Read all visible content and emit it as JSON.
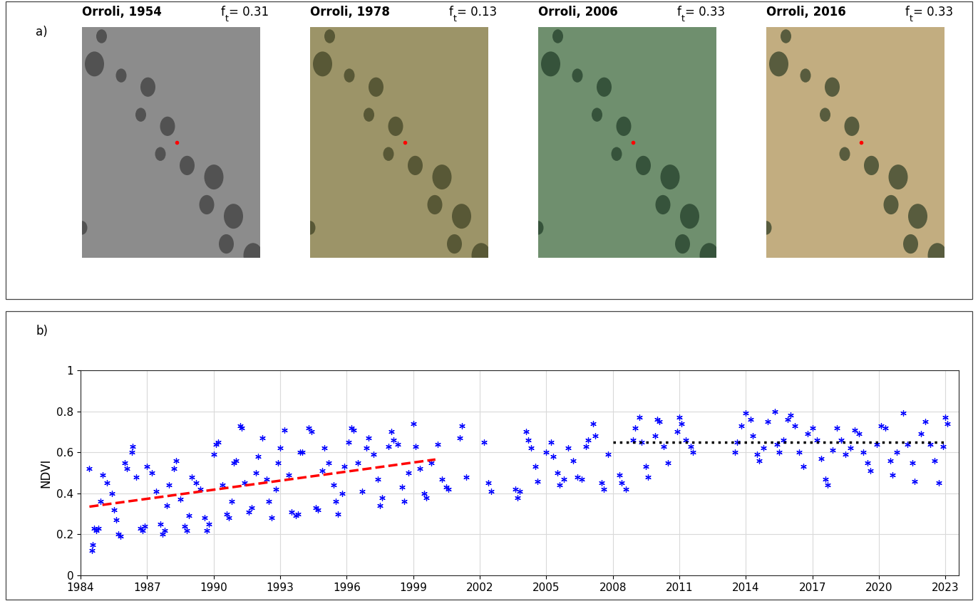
{
  "photos": {
    "panel_label": "a)",
    "fraction_label": {
      "base": "f",
      "subscript": "t",
      "sep": "= "
    },
    "images": [
      {
        "title": "Orroli, 1954",
        "f_t": 0.31
      },
      {
        "title": "Orroli, 1978",
        "f_t": 0.13
      },
      {
        "title": "Orroli, 2006",
        "f_t": 0.33
      },
      {
        "title": "Orroli, 2016",
        "f_t": 0.33
      }
    ]
  },
  "chart_data": {
    "type": "scatter",
    "panel_label": "b)",
    "y_label": "NDVI",
    "xlim": [
      1984,
      2023.6
    ],
    "xticks": [
      1984,
      1987,
      1990,
      1993,
      1996,
      1999,
      2002,
      2005,
      2008,
      2011,
      2014,
      2017,
      2020,
      2023
    ],
    "ylim": [
      0,
      1
    ],
    "yticks": [
      0,
      0.2,
      0.4,
      0.6,
      0.8,
      1
    ],
    "grid": true,
    "series": [
      {
        "type": "scatter",
        "color": "#0000ff",
        "marker": "asterisk",
        "x": [
          1984.4,
          1984.5,
          1984.55,
          1984.6,
          1984.7,
          1984.8,
          1984.9,
          1985.0,
          1985.2,
          1985.4,
          1985.5,
          1985.6,
          1985.7,
          1985.8,
          1986.0,
          1986.1,
          1986.3,
          1986.35,
          1986.5,
          1986.7,
          1986.8,
          1986.9,
          1987.0,
          1987.2,
          1987.4,
          1987.6,
          1987.7,
          1987.8,
          1987.9,
          1988.0,
          1988.2,
          1988.3,
          1988.5,
          1988.7,
          1988.8,
          1988.9,
          1989.0,
          1989.2,
          1989.4,
          1989.6,
          1989.7,
          1989.8,
          1990.0,
          1990.1,
          1990.2,
          1990.4,
          1990.6,
          1990.7,
          1990.8,
          1990.9,
          1991.0,
          1991.2,
          1991.25,
          1991.4,
          1991.6,
          1991.7,
          1991.9,
          1992.0,
          1992.2,
          1992.4,
          1992.5,
          1992.6,
          1992.8,
          1992.9,
          1993.0,
          1993.2,
          1993.4,
          1993.5,
          1993.7,
          1993.8,
          1993.9,
          1994.0,
          1994.3,
          1994.4,
          1994.6,
          1994.7,
          1994.9,
          1995.0,
          1995.2,
          1995.4,
          1995.5,
          1995.6,
          1995.8,
          1995.9,
          1996.1,
          1996.2,
          1996.3,
          1996.5,
          1996.7,
          1996.9,
          1997.0,
          1997.2,
          1997.4,
          1997.5,
          1997.6,
          1997.9,
          1998.0,
          1998.1,
          1998.3,
          1998.5,
          1998.6,
          1998.8,
          1999.0,
          1999.1,
          1999.3,
          1999.5,
          1999.6,
          1999.8,
          2000.1,
          2000.3,
          2000.5,
          2000.6,
          2001.1,
          2001.2,
          2001.4,
          2002.2,
          2002.4,
          2002.5,
          2003.6,
          2003.7,
          2003.8,
          2004.1,
          2004.2,
          2004.3,
          2004.5,
          2004.6,
          2005.0,
          2005.2,
          2005.3,
          2005.5,
          2005.6,
          2005.8,
          2006.0,
          2006.2,
          2006.4,
          2006.6,
          2006.8,
          2006.9,
          2007.1,
          2007.2,
          2007.5,
          2007.6,
          2007.8,
          2008.3,
          2008.4,
          2008.6,
          2008.9,
          2009.0,
          2009.2,
          2009.3,
          2009.5,
          2009.6,
          2009.9,
          2010.0,
          2010.1,
          2010.3,
          2010.5,
          2010.9,
          2011.0,
          2011.1,
          2011.3,
          2011.5,
          2011.6,
          2013.5,
          2013.6,
          2013.8,
          2014.0,
          2014.2,
          2014.3,
          2014.5,
          2014.6,
          2014.8,
          2015.0,
          2015.3,
          2015.4,
          2015.5,
          2015.7,
          2015.9,
          2016.0,
          2016.2,
          2016.4,
          2016.6,
          2016.8,
          2017.0,
          2017.2,
          2017.4,
          2017.6,
          2017.7,
          2017.9,
          2018.1,
          2018.3,
          2018.5,
          2018.7,
          2018.9,
          2019.1,
          2019.3,
          2019.5,
          2019.6,
          2019.9,
          2020.1,
          2020.3,
          2020.5,
          2020.6,
          2020.8,
          2021.1,
          2021.3,
          2021.5,
          2021.6,
          2021.9,
          2022.1,
          2022.3,
          2022.5,
          2022.7,
          2022.9,
          2023.0,
          2023.1
        ],
        "values": [
          0.52,
          0.12,
          0.15,
          0.23,
          0.22,
          0.23,
          0.36,
          0.49,
          0.45,
          0.4,
          0.32,
          0.27,
          0.2,
          0.19,
          0.55,
          0.52,
          0.6,
          0.63,
          0.48,
          0.23,
          0.22,
          0.24,
          0.53,
          0.5,
          0.41,
          0.25,
          0.2,
          0.22,
          0.34,
          0.44,
          0.52,
          0.56,
          0.37,
          0.24,
          0.22,
          0.29,
          0.48,
          0.45,
          0.42,
          0.28,
          0.22,
          0.25,
          0.59,
          0.64,
          0.65,
          0.44,
          0.3,
          0.28,
          0.36,
          0.55,
          0.56,
          0.73,
          0.72,
          0.45,
          0.31,
          0.33,
          0.5,
          0.58,
          0.67,
          0.47,
          0.36,
          0.28,
          0.42,
          0.55,
          0.62,
          0.71,
          0.49,
          0.31,
          0.29,
          0.3,
          0.6,
          0.6,
          0.72,
          0.7,
          0.33,
          0.32,
          0.51,
          0.62,
          0.55,
          0.44,
          0.36,
          0.3,
          0.4,
          0.53,
          0.65,
          0.72,
          0.71,
          0.55,
          0.41,
          0.62,
          0.67,
          0.59,
          0.47,
          0.34,
          0.38,
          0.63,
          0.7,
          0.66,
          0.64,
          0.43,
          0.36,
          0.5,
          0.74,
          0.63,
          0.52,
          0.4,
          0.38,
          0.55,
          0.64,
          0.47,
          0.43,
          0.42,
          0.67,
          0.73,
          0.48,
          0.65,
          0.45,
          0.41,
          0.42,
          0.38,
          0.41,
          0.7,
          0.66,
          0.62,
          0.53,
          0.46,
          0.6,
          0.65,
          0.58,
          0.5,
          0.44,
          0.47,
          0.62,
          0.56,
          0.48,
          0.47,
          0.63,
          0.66,
          0.74,
          0.68,
          0.45,
          0.42,
          0.59,
          0.49,
          0.45,
          0.42,
          0.66,
          0.72,
          0.77,
          0.65,
          0.53,
          0.48,
          0.68,
          0.76,
          0.75,
          0.63,
          0.55,
          0.7,
          0.77,
          0.74,
          0.66,
          0.63,
          0.6,
          0.6,
          0.65,
          0.73,
          0.79,
          0.76,
          0.68,
          0.59,
          0.56,
          0.62,
          0.75,
          0.8,
          0.64,
          0.6,
          0.66,
          0.76,
          0.78,
          0.73,
          0.6,
          0.53,
          0.69,
          0.72,
          0.66,
          0.57,
          0.47,
          0.44,
          0.61,
          0.72,
          0.66,
          0.59,
          0.62,
          0.71,
          0.69,
          0.6,
          0.55,
          0.51,
          0.64,
          0.73,
          0.72,
          0.56,
          0.49,
          0.6,
          0.79,
          0.64,
          0.55,
          0.46,
          0.69,
          0.75,
          0.64,
          0.56,
          0.45,
          0.63,
          0.77,
          0.74
        ]
      },
      {
        "type": "line",
        "color": "#ff0000",
        "line_style": "dashed",
        "x": [
          1984.4,
          2000.0
        ],
        "values": [
          0.335,
          0.565
        ]
      },
      {
        "type": "line",
        "color": "#000000",
        "line_style": "dotted",
        "x": [
          2008.0,
          2023.0
        ],
        "values": [
          0.65,
          0.65
        ]
      }
    ]
  }
}
